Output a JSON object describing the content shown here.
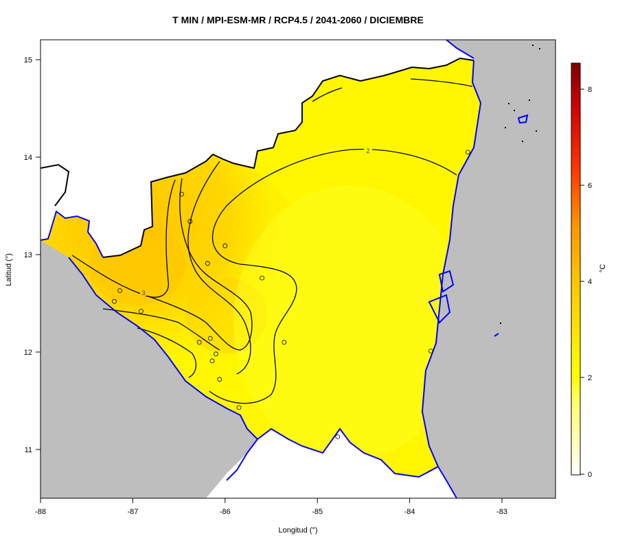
{
  "map": {
    "title": "T MIN / MPI-ESM-MR / RCP4.5 / 2041-2060 / DICIEMBRE",
    "xlabel": "Longitud (°)",
    "ylabel": "Latitud (°)",
    "x_ticks": [
      "-88",
      "-87",
      "-86",
      "-85",
      "-84",
      "-83"
    ],
    "y_ticks": [
      "15",
      "14",
      "13",
      "12",
      "11"
    ],
    "contour_labels": [
      "2",
      "3"
    ],
    "colorbar": {
      "unit": "°C",
      "ticks": [
        "0",
        "2",
        "4",
        "6",
        "8"
      ],
      "colors": [
        "#ffffff",
        "#ffff66",
        "#ffff00",
        "#ffcc00",
        "#ff9900",
        "#ff3300",
        "#cc0000",
        "#7f0000"
      ]
    },
    "colors": {
      "land_main": "#ffec00",
      "land_warm": "#ffc600",
      "sea": "#bebebe",
      "coast": "#0000ff",
      "border": "#000000"
    }
  },
  "chart_data": {
    "type": "heatmap",
    "title": "T MIN / MPI-ESM-MR / RCP4.5 / 2041-2060 / DICIEMBRE",
    "xlabel": "Longitud (°)",
    "ylabel": "Latitud (°)",
    "xlim": [
      -88,
      -82.4
    ],
    "ylim": [
      10.5,
      15.2
    ],
    "colorbar_range": [
      0,
      8.5
    ],
    "colorbar_unit": "°C",
    "contour_levels": [
      2,
      3
    ],
    "stations": [
      {
        "lon": -86.47,
        "lat": 13.62
      },
      {
        "lon": -86.38,
        "lat": 13.34
      },
      {
        "lon": -86.0,
        "lat": 13.09
      },
      {
        "lon": -86.19,
        "lat": 12.91
      },
      {
        "lon": -85.6,
        "lat": 12.76
      },
      {
        "lon": -87.14,
        "lat": 12.63
      },
      {
        "lon": -86.91,
        "lat": 12.42
      },
      {
        "lon": -87.2,
        "lat": 12.52
      },
      {
        "lon": -86.28,
        "lat": 12.1
      },
      {
        "lon": -86.16,
        "lat": 12.14
      },
      {
        "lon": -86.1,
        "lat": 11.98
      },
      {
        "lon": -86.14,
        "lat": 11.91
      },
      {
        "lon": -86.06,
        "lat": 11.72
      },
      {
        "lon": -85.36,
        "lat": 12.1
      },
      {
        "lon": -85.85,
        "lat": 11.43
      },
      {
        "lon": -84.78,
        "lat": 11.13
      },
      {
        "lon": -83.77,
        "lat": 12.01
      },
      {
        "lon": -83.37,
        "lat": 14.05
      }
    ]
  }
}
